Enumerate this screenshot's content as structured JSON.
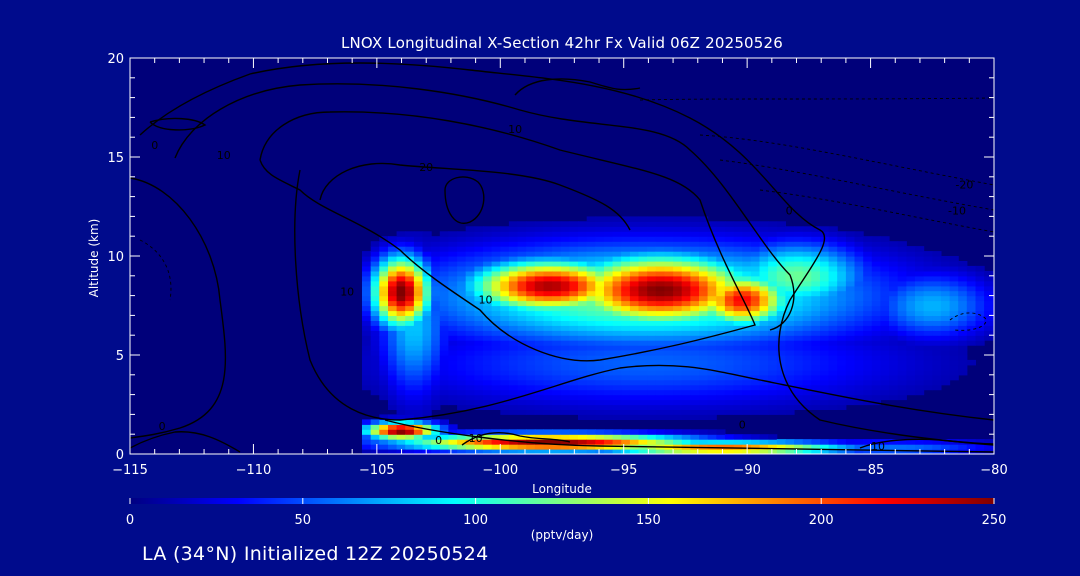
{
  "colors": {
    "background": "#000b8c",
    "colormap": [
      "#000080",
      "#0000ff",
      "#0080ff",
      "#00ffff",
      "#80ff80",
      "#ffff00",
      "#ff8000",
      "#ff0000",
      "#800000"
    ]
  },
  "chart_data": {
    "type": "heatmap",
    "title": "LNOX Longitudinal X-Section 42hr  Fx Valid 06Z 20250526",
    "xlabel": "Longitude",
    "ylabel": "Altitude (km)",
    "xlim": [
      -115,
      -80
    ],
    "ylim": [
      0,
      20
    ],
    "x_ticks": [
      -115,
      -110,
      -105,
      -100,
      -95,
      -90,
      -85,
      -80
    ],
    "y_ticks": [
      0,
      5,
      10,
      15,
      20
    ],
    "colorbar": {
      "min": 0,
      "max": 250,
      "ticks": [
        0,
        50,
        100,
        150,
        200,
        250
      ],
      "unit": "(pptv/day)"
    },
    "field_blobs": [
      {
        "lon": -104,
        "alt": 8.2,
        "sx": 0.8,
        "sy": 1.2,
        "value": 255
      },
      {
        "lon": -98,
        "alt": 8.5,
        "sx": 2.2,
        "sy": 0.9,
        "value": 240
      },
      {
        "lon": -93.5,
        "alt": 8.3,
        "sx": 2.6,
        "sy": 1.2,
        "value": 250
      },
      {
        "lon": -90.2,
        "alt": 7.8,
        "sx": 1.3,
        "sy": 0.9,
        "value": 220
      },
      {
        "lon": -94,
        "alt": 8,
        "sx": 6.5,
        "sy": 1.8,
        "value": 130
      },
      {
        "lon": -88,
        "alt": 9,
        "sx": 2,
        "sy": 1.2,
        "value": 120
      },
      {
        "lon": -82.5,
        "alt": 7.5,
        "sx": 1.8,
        "sy": 1.2,
        "value": 75
      },
      {
        "lon": -94,
        "alt": 4.6,
        "sx": 7.5,
        "sy": 1.6,
        "value": 55
      },
      {
        "lon": -103.5,
        "alt": 6.5,
        "sx": 1,
        "sy": 2.5,
        "value": 80
      },
      {
        "lon": -104,
        "alt": 1.2,
        "sx": 1,
        "sy": 0.3,
        "value": 255
      },
      {
        "lon": -98,
        "alt": 0.6,
        "sx": 4,
        "sy": 0.3,
        "value": 250
      },
      {
        "lon": -91,
        "alt": 0.3,
        "sx": 3.5,
        "sy": 0.25,
        "value": 200
      },
      {
        "lon": -84,
        "alt": 0.3,
        "sx": 3,
        "sy": 0.3,
        "value": 60
      }
    ],
    "contour_labels": [
      {
        "text": "0",
        "lon": -114,
        "alt": 15.4
      },
      {
        "text": "0",
        "lon": -102.5,
        "alt": 0.5
      },
      {
        "text": "0",
        "lon": -88.3,
        "alt": 12.1
      },
      {
        "text": "0",
        "lon": -90.2,
        "alt": 1.3
      },
      {
        "text": "10",
        "lon": -106.2,
        "alt": 8
      },
      {
        "text": "10",
        "lon": -111.2,
        "alt": 14.9
      },
      {
        "text": "10",
        "lon": -100.6,
        "alt": 7.6
      },
      {
        "text": "10",
        "lon": -99.4,
        "alt": 16.2
      },
      {
        "text": "10",
        "lon": -101,
        "alt": 0.6
      },
      {
        "text": "10",
        "lon": -84.7,
        "alt": 0.2
      },
      {
        "text": "-10",
        "lon": -81.5,
        "alt": 12.1
      },
      {
        "text": "-20",
        "lon": -81.2,
        "alt": 13.4
      },
      {
        "text": "20",
        "lon": -103,
        "alt": 14.3
      },
      {
        "text": "0",
        "lon": -113.7,
        "alt": 1.2
      }
    ]
  },
  "footer": "LA (34°N) Initialized 12Z 20250524"
}
